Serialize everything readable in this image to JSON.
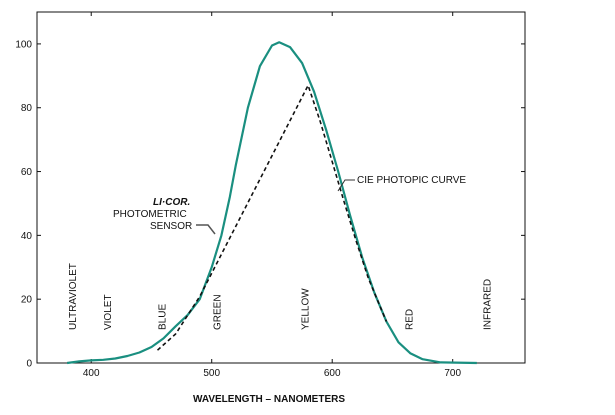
{
  "chart_data": {
    "type": "line",
    "xlabel": "WAVELENGTH – NANOMETERS",
    "ylabel": "",
    "xlim": [
      355,
      760
    ],
    "ylim": [
      0,
      110
    ],
    "x_ticks": [
      400,
      500,
      600,
      700
    ],
    "y_ticks": [
      0,
      20,
      40,
      60,
      80,
      100
    ],
    "grid": false,
    "series": [
      {
        "name": "LI-COR PHOTOMETRIC SENSOR",
        "color": "#1a8f80",
        "style": "solid",
        "points": [
          [
            380,
            0
          ],
          [
            390,
            0.5
          ],
          [
            400,
            0.8
          ],
          [
            410,
            1
          ],
          [
            420,
            1.4
          ],
          [
            430,
            2.2
          ],
          [
            440,
            3.3
          ],
          [
            450,
            5
          ],
          [
            460,
            7.7
          ],
          [
            470,
            11.5
          ],
          [
            480,
            15
          ],
          [
            490,
            20
          ],
          [
            500,
            30
          ],
          [
            508,
            40
          ],
          [
            515,
            52
          ],
          [
            520,
            62
          ],
          [
            530,
            80
          ],
          [
            540,
            93
          ],
          [
            550,
            99.5
          ],
          [
            556,
            100.5
          ],
          [
            565,
            99
          ],
          [
            575,
            94
          ],
          [
            585,
            85
          ],
          [
            595,
            73
          ],
          [
            605,
            60
          ],
          [
            615,
            46
          ],
          [
            625,
            33
          ],
          [
            635,
            22
          ],
          [
            645,
            13
          ],
          [
            655,
            6.5
          ],
          [
            665,
            3
          ],
          [
            675,
            1.2
          ],
          [
            690,
            0.2
          ],
          [
            720,
            0
          ]
        ]
      },
      {
        "name": "CIE PHOTOPIC CURVE",
        "color": "#111111",
        "style": "dashed",
        "points": [
          [
            455,
            4
          ],
          [
            470,
            9.1
          ],
          [
            490,
            20.8
          ],
          [
            580,
            87
          ],
          [
            590,
            75.7
          ],
          [
            600,
            63.1
          ],
          [
            610,
            50.3
          ],
          [
            620,
            38.1
          ],
          [
            630,
            26.5
          ],
          [
            640,
            17.5
          ],
          [
            645,
            13
          ]
        ]
      }
    ],
    "categories": [
      {
        "label": "ULTRAVIOLET",
        "x": 385
      },
      {
        "label": "VIOLET",
        "x": 414
      },
      {
        "label": "BLUE",
        "x": 459
      },
      {
        "label": "GREEN",
        "x": 505
      },
      {
        "label": "YELLOW",
        "x": 578
      },
      {
        "label": "RED",
        "x": 664
      },
      {
        "label": "INFRARED",
        "x": 729
      }
    ],
    "annotations": {
      "logo": "LI·COR.",
      "sensor_line1": "PHOTOMETRIC",
      "sensor_line2": "SENSOR",
      "cie": "CIE PHOTOPIC CURVE"
    }
  }
}
